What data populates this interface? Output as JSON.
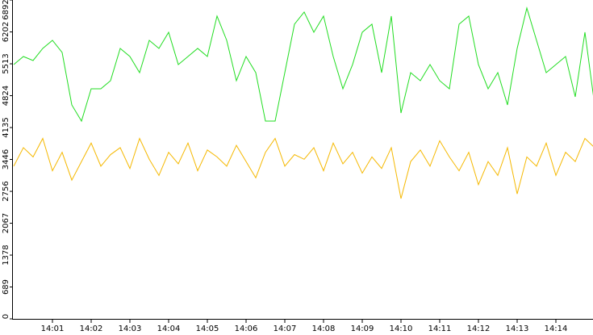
{
  "chart_data": {
    "type": "line",
    "x": [
      0,
      0.25,
      0.5,
      0.75,
      1,
      1.25,
      1.5,
      1.75,
      2,
      2.25,
      2.5,
      2.75,
      3,
      3.25,
      3.5,
      3.75,
      4,
      4.25,
      4.5,
      4.75,
      5,
      5.25,
      5.5,
      5.75,
      6,
      6.25,
      6.5,
      6.75,
      7,
      7.25,
      7.5,
      7.75,
      8,
      8.25,
      8.5,
      8.75,
      9,
      9.25,
      9.5,
      9.75,
      10,
      10.25,
      10.5,
      10.75,
      11,
      11.25,
      11.5,
      11.75,
      12,
      12.25,
      12.5,
      12.75,
      13,
      13.25,
      13.5,
      13.75,
      14,
      14.25,
      14.5,
      14.75,
      15
    ],
    "series": [
      {
        "color": "#22dd22",
        "values": [
          5497,
          5671,
          5584,
          5846,
          6020,
          5758,
          4624,
          4275,
          4973,
          4973,
          5148,
          5846,
          5671,
          5322,
          6020,
          5846,
          6195,
          5497,
          5671,
          5846,
          5671,
          6544,
          6020,
          5148,
          5671,
          5322,
          4275,
          4275,
          5322,
          6369,
          6631,
          6195,
          6544,
          5671,
          4973,
          5497,
          6195,
          6369,
          5322,
          6544,
          4450,
          5322,
          5148,
          5497,
          5148,
          4973,
          6369,
          6544,
          5497,
          4973,
          5322,
          4624,
          5846,
          6718,
          6020,
          5322,
          5497,
          5671,
          4799,
          6195,
          4624
        ]
      },
      {
        "color": "#f5b800",
        "values": [
          3300,
          3700,
          3500,
          3900,
          3200,
          3600,
          3000,
          3400,
          3800,
          3300,
          3550,
          3700,
          3250,
          3900,
          3450,
          3100,
          3600,
          3350,
          3800,
          3200,
          3650,
          3500,
          3300,
          3750,
          3400,
          3050,
          3600,
          3900,
          3300,
          3550,
          3450,
          3700,
          3200,
          3800,
          3350,
          3600,
          3150,
          3500,
          3250,
          3700,
          2600,
          3400,
          3650,
          3300,
          3850,
          3500,
          3200,
          3600,
          2900,
          3400,
          3100,
          3700,
          2700,
          3500,
          3300,
          3800,
          3100,
          3600,
          3400,
          3900,
          3700
        ]
      }
    ],
    "xlim": [
      0,
      15
    ],
    "xticks": [
      {
        "value": 1,
        "label": "14:01"
      },
      {
        "value": 2,
        "label": "14:02"
      },
      {
        "value": 3,
        "label": "14:03"
      },
      {
        "value": 4,
        "label": "14:04"
      },
      {
        "value": 5,
        "label": "14:05"
      },
      {
        "value": 6,
        "label": "14:06"
      },
      {
        "value": 7,
        "label": "14:07"
      },
      {
        "value": 8,
        "label": "14:08"
      },
      {
        "value": 9,
        "label": "14:09"
      },
      {
        "value": 10,
        "label": "14:10"
      },
      {
        "value": 11,
        "label": "14:11"
      },
      {
        "value": 12,
        "label": "14:12"
      },
      {
        "value": 13,
        "label": "14:13"
      },
      {
        "value": 14,
        "label": "14:14"
      }
    ],
    "ylim": [
      0,
      6892
    ],
    "yticks": [
      0,
      689,
      1378,
      2067,
      2756,
      3446,
      4135,
      4824,
      5513,
      6202,
      6892
    ]
  }
}
